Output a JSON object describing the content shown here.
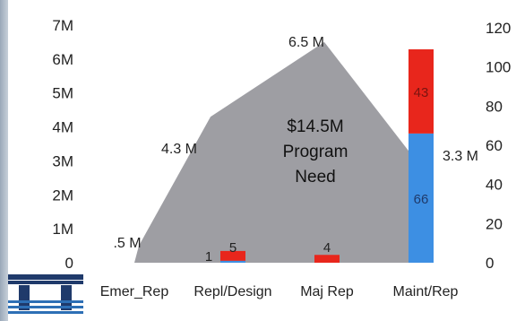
{
  "chart_data": {
    "type": "area",
    "categories": [
      "Emer_Rep",
      "Repl/Design",
      "Maj Rep",
      "Maint/Rep"
    ],
    "ylim_left": [
      0,
      7000000
    ],
    "yticks_left": [
      "0",
      "1M",
      "2M",
      "3M",
      "4M",
      "5M",
      "6M",
      "7M"
    ],
    "ylim_right": [
      0,
      120
    ],
    "yticks_right": [
      "0",
      "20",
      "40",
      "60",
      "80",
      "100",
      "120"
    ],
    "area_series": {
      "values": [
        500000,
        4300000,
        6500000,
        3300000
      ],
      "data_labels": [
        ".5 M",
        "4.3 M",
        "6.5 M",
        "3.3 M"
      ],
      "color": "#9e9ea3"
    },
    "center_annotation": [
      "$14.5M",
      "Program",
      "Need"
    ],
    "bar_series": [
      {
        "values": [
          0,
          1,
          0,
          66
        ],
        "color": "#3d8fe3"
      },
      {
        "values": [
          0,
          5,
          4,
          43
        ],
        "color": "#e8261c"
      }
    ],
    "bar_labels": [
      "",
      "1",
      "",
      "66"
    ],
    "bar_labels_top": [
      "",
      "5",
      "4",
      "43"
    ],
    "grid": false,
    "legend": "none"
  }
}
